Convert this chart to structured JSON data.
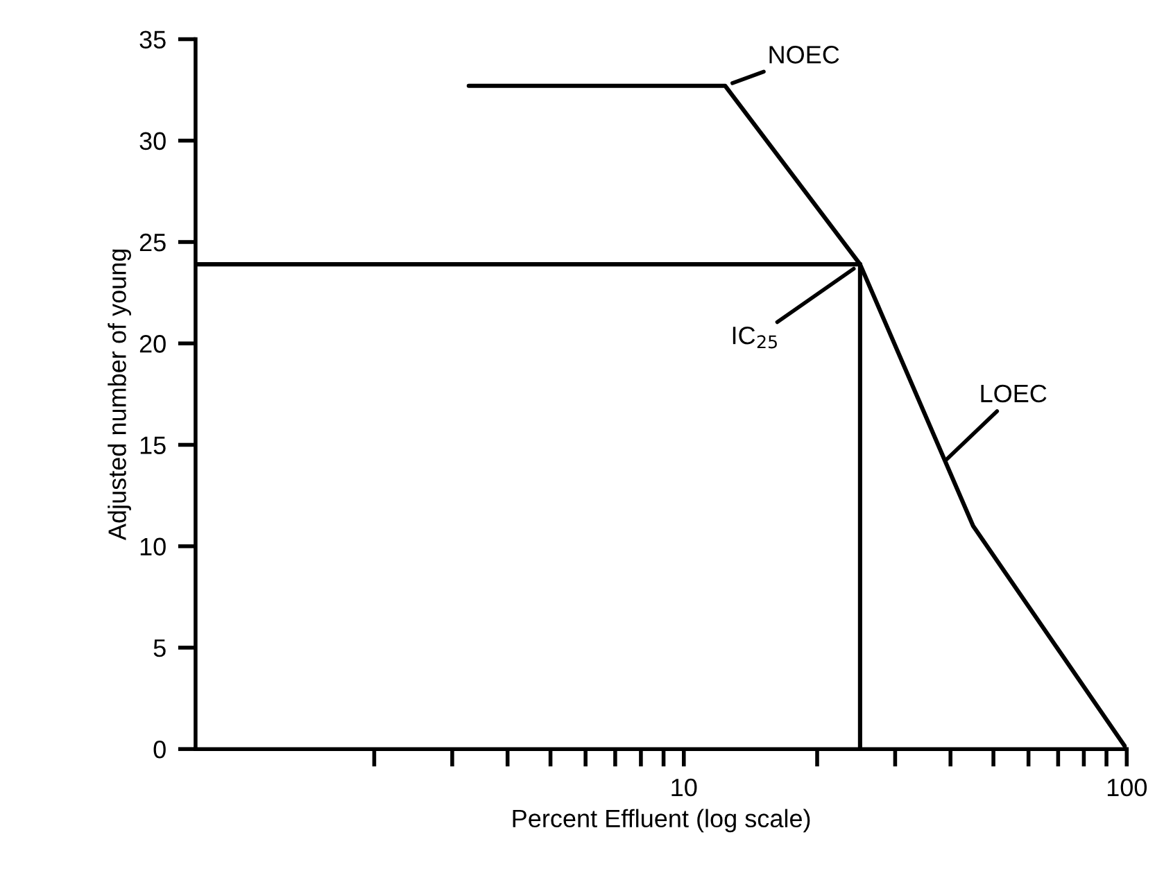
{
  "chart_data": {
    "type": "line",
    "xlabel": "Percent Effluent (log scale)",
    "ylabel": "Adjusted number of young",
    "log": "x",
    "xlim": [
      0.79,
      100
    ],
    "ylim": [
      0,
      35
    ],
    "xticks": [
      {
        "value": 2,
        "label": null
      },
      {
        "value": 3,
        "label": null
      },
      {
        "value": 4,
        "label": null
      },
      {
        "value": 5,
        "label": null
      },
      {
        "value": 6,
        "label": null
      },
      {
        "value": 7,
        "label": null
      },
      {
        "value": 8,
        "label": null
      },
      {
        "value": 9,
        "label": null
      },
      10,
      {
        "value": 20,
        "label": null
      },
      {
        "value": 30,
        "label": null
      },
      {
        "value": 40,
        "label": null
      },
      {
        "value": 50,
        "label": null
      },
      {
        "value": 60,
        "label": null
      },
      {
        "value": 70,
        "label": null
      },
      {
        "value": 80,
        "label": null
      },
      {
        "value": 90,
        "label": null
      },
      100
    ],
    "yticks": [
      0,
      5,
      10,
      15,
      20,
      25,
      30,
      35
    ],
    "series": [
      {
        "color": "#000000",
        "x": [
          3.27,
          12.4,
          25,
          45,
          100
        ],
        "values": [
          32.7,
          32.7,
          23.9,
          11.0,
          0
        ]
      },
      {
        "color": "#000000",
        "x": [
          0.79,
          25
        ],
        "values": [
          23.9,
          23.9
        ]
      },
      {
        "color": "#000000",
        "x": [
          25,
          25
        ],
        "values": [
          23.9,
          0
        ]
      }
    ],
    "annotations": [
      {
        "text": "NOEC",
        "x": 12.4,
        "y": 32.7
      },
      {
        "text": "IC$_{25}$",
        "x": 25,
        "y": 23.9
      },
      {
        "text": "LOEC",
        "x": 38,
        "y": 14
      }
    ],
    "grid": false,
    "marker": "none",
    "line_style": "solid"
  }
}
